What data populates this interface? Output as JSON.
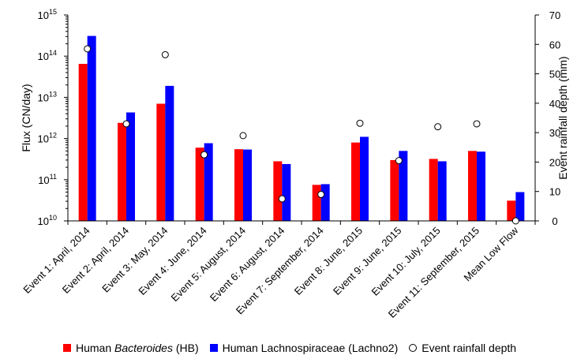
{
  "chart_data": {
    "type": "bar",
    "categories": [
      "Event 1: April, 2014",
      "Event 2: April, 2014",
      "Event 3: May, 2014",
      "Event 4: June, 2014",
      "Event 5: August, 2014",
      "Event 6: August, 2014",
      "Event 7: September, 2014",
      "Event 8: June, 2015",
      "Event 9: June, 2015",
      "Event 10: July, 2015",
      "Event 11: September, 2015",
      "Mean Low Flow"
    ],
    "series": [
      {
        "name": "Human Bacteroides (HB)",
        "name_parts": {
          "pre": "Human ",
          "italic": "Bacteroides",
          "post": " (HB)"
        },
        "color": "#ff0000",
        "axis": "left",
        "values": [
          65000000000000.0,
          2400000000000.0,
          7000000000000.0,
          600000000000.0,
          550000000000.0,
          280000000000.0,
          75000000000.0,
          800000000000.0,
          300000000000.0,
          320000000000.0,
          500000000000.0,
          31000000000.0
        ]
      },
      {
        "name": "Human Lachnospiraceae (Lachno2)",
        "color": "#0000ff",
        "axis": "left",
        "values": [
          310000000000000.0,
          4300000000000.0,
          19000000000000.0,
          770000000000.0,
          540000000000.0,
          240000000000.0,
          78000000000.0,
          1100000000000.0,
          500000000000.0,
          280000000000.0,
          480000000000.0,
          50000000000.0
        ]
      },
      {
        "name": "Event rainfall depth",
        "type": "scatter",
        "marker": "open-circle",
        "axis": "right",
        "values": [
          58.5,
          33,
          56.5,
          22.5,
          29,
          7.5,
          9,
          33.2,
          20.5,
          32,
          33,
          0
        ]
      }
    ],
    "yaxis_left": {
      "label": "Flux (CN/day)",
      "scale": "log",
      "ylim": [
        10000000000.0,
        1000000000000000.0
      ],
      "ticks": [
        {
          "base": "10",
          "exp": "10"
        },
        {
          "base": "10",
          "exp": "11"
        },
        {
          "base": "10",
          "exp": "12"
        },
        {
          "base": "10",
          "exp": "13"
        },
        {
          "base": "10",
          "exp": "14"
        },
        {
          "base": "10",
          "exp": "15"
        }
      ]
    },
    "yaxis_right": {
      "label": "Event rainfall depth (mm)",
      "ylim": [
        0,
        70
      ],
      "ticks": [
        "0",
        "10",
        "20",
        "30",
        "40",
        "50",
        "60",
        "70"
      ]
    },
    "grid": false,
    "legend_position": "bottom"
  }
}
